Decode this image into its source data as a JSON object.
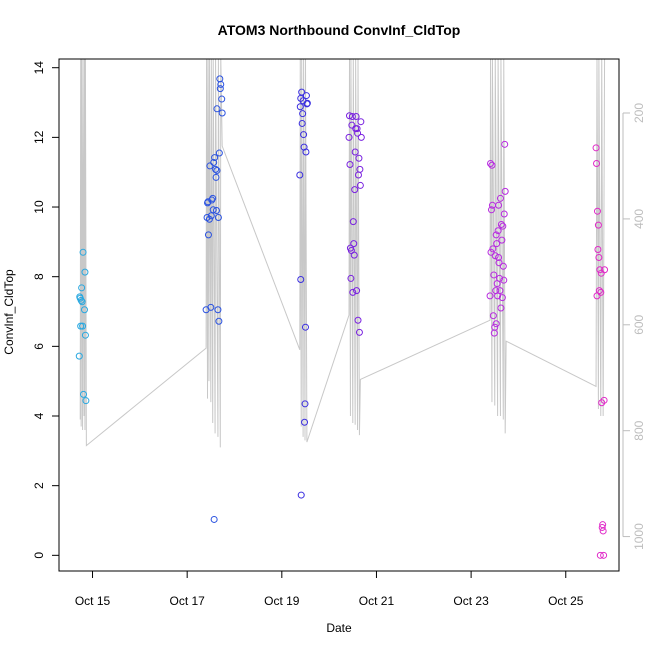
{
  "chart_data": {
    "type": "scatter",
    "title": "ATOM3 Northbound ConvInf_CldTop",
    "xlabel": "Date",
    "ylabel": "ConvInf_CldTop",
    "x_ticks": [
      "Oct 15",
      "Oct 17",
      "Oct 19",
      "Oct 21",
      "Oct 23",
      "Oct 25"
    ],
    "y_ticks": [
      "0",
      "2",
      "4",
      "6",
      "8",
      "10",
      "12",
      "14"
    ],
    "y2_ticks": [
      "200",
      "400",
      "600",
      "800",
      "1000"
    ],
    "xlim": [
      "2023-10-14T07:00",
      "2023-10-26T03:00"
    ],
    "ylim": [
      -0.45,
      14.25
    ],
    "y2lim": [
      98,
      1065
    ],
    "y2_reversed": true,
    "grid": false,
    "series": [
      {
        "color": "#29a8e0",
        "points": [
          [
            14.72,
            5.72
          ],
          [
            14.73,
            7.42
          ],
          [
            14.74,
            7.38
          ],
          [
            14.75,
            6.58
          ],
          [
            14.76,
            7.32
          ],
          [
            14.77,
            7.68
          ],
          [
            14.78,
            7.28
          ],
          [
            14.79,
            6.58
          ],
          [
            14.8,
            8.7
          ],
          [
            14.81,
            4.62
          ],
          [
            14.83,
            7.05
          ],
          [
            14.84,
            8.13
          ],
          [
            14.85,
            6.32
          ],
          [
            14.86,
            4.44
          ]
        ]
      },
      {
        "color": "#2a52e0",
        "points": [
          [
            17.4,
            7.05
          ],
          [
            17.42,
            9.7
          ],
          [
            17.43,
            10.12
          ],
          [
            17.44,
            10.15
          ],
          [
            17.45,
            9.2
          ],
          [
            17.47,
            9.65
          ],
          [
            17.48,
            11.18
          ],
          [
            17.5,
            7.12
          ],
          [
            17.51,
            9.75
          ],
          [
            17.52,
            10.2
          ],
          [
            17.54,
            10.25
          ],
          [
            17.55,
            9.92
          ],
          [
            17.56,
            11.28
          ],
          [
            17.57,
            1.03
          ],
          [
            17.58,
            11.42
          ],
          [
            17.6,
            11.08
          ],
          [
            17.61,
            10.85
          ],
          [
            17.62,
            9.9
          ],
          [
            17.63,
            12.82
          ],
          [
            17.65,
            7.05
          ],
          [
            17.66,
            9.7
          ],
          [
            17.67,
            6.72
          ],
          [
            17.68,
            11.55
          ],
          [
            17.69,
            13.68
          ],
          [
            17.7,
            13.4
          ],
          [
            17.71,
            13.52
          ],
          [
            17.73,
            13.1
          ],
          [
            17.74,
            12.7
          ],
          [
            17.63,
            11.05
          ]
        ]
      },
      {
        "color": "#3b2fe0",
        "points": [
          [
            19.38,
            10.92
          ],
          [
            19.39,
            12.88
          ],
          [
            19.4,
            13.12
          ],
          [
            19.4,
            7.92
          ],
          [
            19.41,
            1.73
          ],
          [
            19.42,
            13.3
          ],
          [
            19.43,
            12.4
          ],
          [
            19.44,
            12.68
          ],
          [
            19.45,
            13.05
          ],
          [
            19.46,
            12.08
          ],
          [
            19.47,
            11.72
          ],
          [
            19.48,
            3.82
          ],
          [
            19.49,
            4.35
          ],
          [
            19.5,
            6.55
          ],
          [
            19.51,
            11.58
          ],
          [
            19.52,
            13.2
          ],
          [
            19.53,
            12.96
          ],
          [
            19.54,
            12.98
          ]
        ]
      },
      {
        "color": "#7a22e0",
        "points": [
          [
            20.42,
            12.0
          ],
          [
            20.43,
            12.62
          ],
          [
            20.44,
            11.22
          ],
          [
            20.45,
            8.82
          ],
          [
            20.46,
            7.95
          ],
          [
            20.47,
            8.75
          ],
          [
            20.48,
            12.35
          ],
          [
            20.49,
            12.6
          ],
          [
            20.5,
            7.55
          ],
          [
            20.51,
            9.58
          ],
          [
            20.52,
            8.95
          ],
          [
            20.53,
            8.62
          ],
          [
            20.54,
            10.5
          ],
          [
            20.55,
            11.58
          ],
          [
            20.56,
            12.25
          ],
          [
            20.57,
            12.6
          ],
          [
            20.58,
            7.6
          ],
          [
            20.59,
            12.25
          ],
          [
            20.6,
            12.12
          ],
          [
            20.61,
            6.75
          ],
          [
            20.62,
            10.92
          ],
          [
            20.63,
            11.4
          ],
          [
            20.64,
            6.4
          ],
          [
            20.65,
            11.08
          ],
          [
            20.66,
            10.62
          ],
          [
            20.67,
            12.45
          ],
          [
            20.68,
            12.0
          ]
        ]
      },
      {
        "color": "#b82ae0",
        "points": [
          [
            23.4,
            7.45
          ],
          [
            23.41,
            11.25
          ],
          [
            23.42,
            8.7
          ],
          [
            23.43,
            9.92
          ],
          [
            23.44,
            11.2
          ],
          [
            23.45,
            10.05
          ],
          [
            23.46,
            8.8
          ],
          [
            23.47,
            6.88
          ],
          [
            23.48,
            8.05
          ],
          [
            23.49,
            6.38
          ],
          [
            23.5,
            6.55
          ],
          [
            23.51,
            8.6
          ],
          [
            23.52,
            7.6
          ],
          [
            23.53,
            6.65
          ],
          [
            23.54,
            8.95
          ],
          [
            23.55,
            7.8
          ],
          [
            23.56,
            7.45
          ],
          [
            23.57,
            9.32
          ],
          [
            23.58,
            8.55
          ],
          [
            23.59,
            8.4
          ],
          [
            23.6,
            7.95
          ],
          [
            23.61,
            7.6
          ],
          [
            23.62,
            10.25
          ],
          [
            23.63,
            7.1
          ],
          [
            23.64,
            9.5
          ],
          [
            23.65,
            9.05
          ],
          [
            23.66,
            7.4
          ],
          [
            23.67,
            9.45
          ],
          [
            23.68,
            8.3
          ],
          [
            23.69,
            7.9
          ],
          [
            23.7,
            9.8
          ],
          [
            23.71,
            11.8
          ],
          [
            23.72,
            10.45
          ],
          [
            23.53,
            9.2
          ],
          [
            23.58,
            10.05
          ]
        ]
      },
      {
        "color": "#e02ac8",
        "points": [
          [
            25.64,
            11.7
          ],
          [
            25.65,
            11.25
          ],
          [
            25.66,
            7.45
          ],
          [
            25.67,
            9.88
          ],
          [
            25.68,
            8.78
          ],
          [
            25.69,
            9.48
          ],
          [
            25.7,
            8.55
          ],
          [
            25.71,
            7.6
          ],
          [
            25.72,
            8.2
          ],
          [
            25.73,
            0.0
          ],
          [
            25.74,
            7.55
          ],
          [
            25.75,
            8.1
          ],
          [
            25.76,
            4.38
          ],
          [
            25.77,
            0.8
          ],
          [
            25.78,
            0.88
          ],
          [
            25.79,
            0.7
          ],
          [
            25.8,
            0.0
          ],
          [
            25.81,
            4.45
          ],
          [
            25.82,
            8.2
          ]
        ]
      }
    ],
    "line_series": {
      "color": "#c8c8c8",
      "points": [
        [
          14.74,
          3.9
        ],
        [
          14.75,
          14.3
        ],
        [
          14.76,
          3.7
        ],
        [
          14.77,
          14.3
        ],
        [
          14.79,
          3.6
        ],
        [
          14.8,
          14.3
        ],
        [
          14.82,
          4.0
        ],
        [
          14.83,
          14.3
        ],
        [
          14.84,
          3.6
        ],
        [
          14.85,
          14.3
        ],
        [
          14.87,
          3.15
        ],
        [
          17.4,
          5.95
        ],
        [
          17.41,
          14.3
        ],
        [
          17.43,
          4.5
        ],
        [
          17.44,
          14.3
        ],
        [
          17.46,
          5.0
        ],
        [
          17.47,
          14.3
        ],
        [
          17.5,
          4.4
        ],
        [
          17.51,
          14.3
        ],
        [
          17.54,
          3.8
        ],
        [
          17.55,
          14.3
        ],
        [
          17.59,
          3.5
        ],
        [
          17.6,
          14.3
        ],
        [
          17.65,
          3.4
        ],
        [
          17.66,
          14.3
        ],
        [
          17.7,
          3.1
        ],
        [
          17.71,
          14.3
        ],
        [
          17.74,
          11.75
        ],
        [
          19.38,
          5.9
        ],
        [
          19.39,
          14.3
        ],
        [
          19.41,
          3.7
        ],
        [
          19.42,
          14.3
        ],
        [
          19.45,
          3.4
        ],
        [
          19.46,
          14.3
        ],
        [
          19.49,
          3.3
        ],
        [
          19.5,
          14.3
        ],
        [
          19.53,
          3.25
        ],
        [
          20.42,
          6.9
        ],
        [
          20.43,
          14.3
        ],
        [
          20.45,
          4.0
        ],
        [
          20.46,
          14.3
        ],
        [
          20.5,
          3.8
        ],
        [
          20.51,
          14.3
        ],
        [
          20.55,
          3.75
        ],
        [
          20.56,
          14.3
        ],
        [
          20.6,
          3.6
        ],
        [
          20.61,
          14.3
        ],
        [
          20.64,
          3.45
        ],
        [
          20.66,
          5.05
        ],
        [
          23.4,
          6.75
        ],
        [
          23.41,
          14.3
        ],
        [
          23.44,
          4.4
        ],
        [
          23.45,
          14.3
        ],
        [
          23.5,
          4.3
        ],
        [
          23.51,
          14.3
        ],
        [
          23.56,
          4.0
        ],
        [
          23.57,
          14.3
        ],
        [
          23.62,
          4.0
        ],
        [
          23.63,
          14.3
        ],
        [
          23.68,
          3.9
        ],
        [
          23.69,
          14.3
        ],
        [
          23.72,
          3.5
        ],
        [
          23.74,
          6.15
        ],
        [
          25.64,
          4.85
        ],
        [
          25.66,
          14.3
        ],
        [
          25.69,
          4.2
        ],
        [
          25.7,
          14.3
        ],
        [
          25.74,
          4.0
        ],
        [
          25.76,
          14.3
        ],
        [
          25.79,
          4.0
        ],
        [
          25.82,
          14.3
        ]
      ]
    }
  }
}
